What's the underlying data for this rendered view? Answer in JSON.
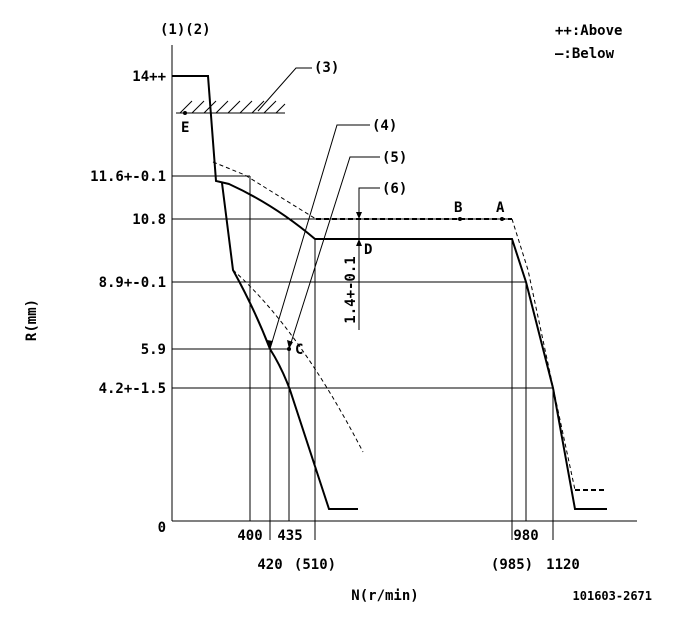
{
  "header": {
    "axis_top": "(1)(2)",
    "legend_above": "++:Above",
    "legend_below": "—:Below"
  },
  "y_axis": {
    "title": "R(mm)",
    "labels": [
      "14++",
      "11.6+-0.1",
      "10.8",
      "8.9+-0.1",
      "5.9",
      "4.2+-1.5",
      "0"
    ]
  },
  "x_axis": {
    "title": "N(r/min)",
    "labels_upper": [
      "400",
      "435",
      "980"
    ],
    "labels_lower": [
      "420",
      "(510)",
      "(985)",
      "1120"
    ]
  },
  "callouts": [
    "(3)",
    "(4)",
    "(5)",
    "(6)"
  ],
  "points": [
    "E",
    "B",
    "A",
    "D",
    "C"
  ],
  "dimension": "1.4+-0.1",
  "footer": {
    "code": "101603-2671"
  }
}
